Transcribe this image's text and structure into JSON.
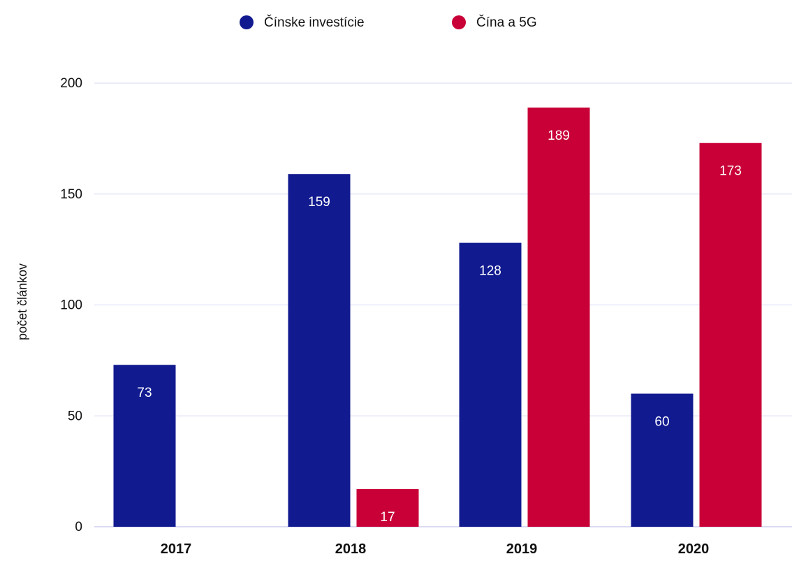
{
  "chart_data": {
    "type": "bar",
    "title": "",
    "xlabel": "",
    "ylabel": "počet článkov",
    "categories": [
      "2017",
      "2018",
      "2019",
      "2020"
    ],
    "series": [
      {
        "name": "Čínske investície",
        "color": "#111a8f",
        "values": [
          73,
          159,
          128,
          60
        ]
      },
      {
        "name": "Čína a 5G",
        "color": "#c80037",
        "values": [
          null,
          17,
          189,
          173
        ]
      }
    ],
    "ylim": [
      0,
      200
    ],
    "yticks": [
      0,
      50,
      100,
      150,
      200
    ],
    "grid": true,
    "legend_position": "top-center"
  }
}
